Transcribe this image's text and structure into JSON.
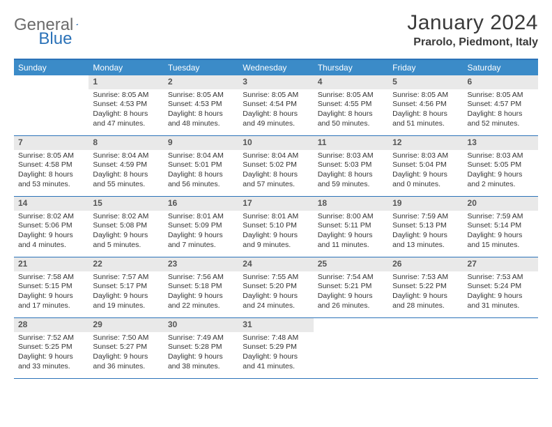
{
  "logo": {
    "word1": "General",
    "word2": "Blue"
  },
  "title": "January 2024",
  "location": "Prarolo, Piedmont, Italy",
  "colors": {
    "accent": "#2b72b8",
    "header_bg": "#3b8bc8",
    "daynum_bg": "#e9e9e9",
    "text": "#333333",
    "logo_gray": "#6b6b6b"
  },
  "days_of_week": [
    "Sunday",
    "Monday",
    "Tuesday",
    "Wednesday",
    "Thursday",
    "Friday",
    "Saturday"
  ],
  "weeks": [
    [
      {
        "n": "",
        "blank": true
      },
      {
        "n": "1",
        "sunrise": "8:05 AM",
        "sunset": "4:53 PM",
        "dl1": "Daylight: 8 hours",
        "dl2": "and 47 minutes."
      },
      {
        "n": "2",
        "sunrise": "8:05 AM",
        "sunset": "4:53 PM",
        "dl1": "Daylight: 8 hours",
        "dl2": "and 48 minutes."
      },
      {
        "n": "3",
        "sunrise": "8:05 AM",
        "sunset": "4:54 PM",
        "dl1": "Daylight: 8 hours",
        "dl2": "and 49 minutes."
      },
      {
        "n": "4",
        "sunrise": "8:05 AM",
        "sunset": "4:55 PM",
        "dl1": "Daylight: 8 hours",
        "dl2": "and 50 minutes."
      },
      {
        "n": "5",
        "sunrise": "8:05 AM",
        "sunset": "4:56 PM",
        "dl1": "Daylight: 8 hours",
        "dl2": "and 51 minutes."
      },
      {
        "n": "6",
        "sunrise": "8:05 AM",
        "sunset": "4:57 PM",
        "dl1": "Daylight: 8 hours",
        "dl2": "and 52 minutes."
      }
    ],
    [
      {
        "n": "7",
        "sunrise": "8:05 AM",
        "sunset": "4:58 PM",
        "dl1": "Daylight: 8 hours",
        "dl2": "and 53 minutes."
      },
      {
        "n": "8",
        "sunrise": "8:04 AM",
        "sunset": "4:59 PM",
        "dl1": "Daylight: 8 hours",
        "dl2": "and 55 minutes."
      },
      {
        "n": "9",
        "sunrise": "8:04 AM",
        "sunset": "5:01 PM",
        "dl1": "Daylight: 8 hours",
        "dl2": "and 56 minutes."
      },
      {
        "n": "10",
        "sunrise": "8:04 AM",
        "sunset": "5:02 PM",
        "dl1": "Daylight: 8 hours",
        "dl2": "and 57 minutes."
      },
      {
        "n": "11",
        "sunrise": "8:03 AM",
        "sunset": "5:03 PM",
        "dl1": "Daylight: 8 hours",
        "dl2": "and 59 minutes."
      },
      {
        "n": "12",
        "sunrise": "8:03 AM",
        "sunset": "5:04 PM",
        "dl1": "Daylight: 9 hours",
        "dl2": "and 0 minutes."
      },
      {
        "n": "13",
        "sunrise": "8:03 AM",
        "sunset": "5:05 PM",
        "dl1": "Daylight: 9 hours",
        "dl2": "and 2 minutes."
      }
    ],
    [
      {
        "n": "14",
        "sunrise": "8:02 AM",
        "sunset": "5:06 PM",
        "dl1": "Daylight: 9 hours",
        "dl2": "and 4 minutes."
      },
      {
        "n": "15",
        "sunrise": "8:02 AM",
        "sunset": "5:08 PM",
        "dl1": "Daylight: 9 hours",
        "dl2": "and 5 minutes."
      },
      {
        "n": "16",
        "sunrise": "8:01 AM",
        "sunset": "5:09 PM",
        "dl1": "Daylight: 9 hours",
        "dl2": "and 7 minutes."
      },
      {
        "n": "17",
        "sunrise": "8:01 AM",
        "sunset": "5:10 PM",
        "dl1": "Daylight: 9 hours",
        "dl2": "and 9 minutes."
      },
      {
        "n": "18",
        "sunrise": "8:00 AM",
        "sunset": "5:11 PM",
        "dl1": "Daylight: 9 hours",
        "dl2": "and 11 minutes."
      },
      {
        "n": "19",
        "sunrise": "7:59 AM",
        "sunset": "5:13 PM",
        "dl1": "Daylight: 9 hours",
        "dl2": "and 13 minutes."
      },
      {
        "n": "20",
        "sunrise": "7:59 AM",
        "sunset": "5:14 PM",
        "dl1": "Daylight: 9 hours",
        "dl2": "and 15 minutes."
      }
    ],
    [
      {
        "n": "21",
        "sunrise": "7:58 AM",
        "sunset": "5:15 PM",
        "dl1": "Daylight: 9 hours",
        "dl2": "and 17 minutes."
      },
      {
        "n": "22",
        "sunrise": "7:57 AM",
        "sunset": "5:17 PM",
        "dl1": "Daylight: 9 hours",
        "dl2": "and 19 minutes."
      },
      {
        "n": "23",
        "sunrise": "7:56 AM",
        "sunset": "5:18 PM",
        "dl1": "Daylight: 9 hours",
        "dl2": "and 22 minutes."
      },
      {
        "n": "24",
        "sunrise": "7:55 AM",
        "sunset": "5:20 PM",
        "dl1": "Daylight: 9 hours",
        "dl2": "and 24 minutes."
      },
      {
        "n": "25",
        "sunrise": "7:54 AM",
        "sunset": "5:21 PM",
        "dl1": "Daylight: 9 hours",
        "dl2": "and 26 minutes."
      },
      {
        "n": "26",
        "sunrise": "7:53 AM",
        "sunset": "5:22 PM",
        "dl1": "Daylight: 9 hours",
        "dl2": "and 28 minutes."
      },
      {
        "n": "27",
        "sunrise": "7:53 AM",
        "sunset": "5:24 PM",
        "dl1": "Daylight: 9 hours",
        "dl2": "and 31 minutes."
      }
    ],
    [
      {
        "n": "28",
        "sunrise": "7:52 AM",
        "sunset": "5:25 PM",
        "dl1": "Daylight: 9 hours",
        "dl2": "and 33 minutes."
      },
      {
        "n": "29",
        "sunrise": "7:50 AM",
        "sunset": "5:27 PM",
        "dl1": "Daylight: 9 hours",
        "dl2": "and 36 minutes."
      },
      {
        "n": "30",
        "sunrise": "7:49 AM",
        "sunset": "5:28 PM",
        "dl1": "Daylight: 9 hours",
        "dl2": "and 38 minutes."
      },
      {
        "n": "31",
        "sunrise": "7:48 AM",
        "sunset": "5:29 PM",
        "dl1": "Daylight: 9 hours",
        "dl2": "and 41 minutes."
      },
      {
        "n": "",
        "blank": true
      },
      {
        "n": "",
        "blank": true
      },
      {
        "n": "",
        "blank": true
      }
    ]
  ]
}
